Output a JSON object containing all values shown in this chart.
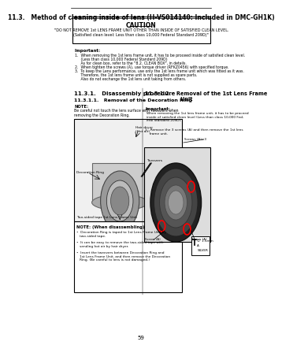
{
  "page_number": "59",
  "bg_color": "#ffffff",
  "title": "11.3.   Method of cleaning inside of lens (H-VS014140: Included in DMC-GH1K)",
  "caution_title": "CAUTION",
  "caution_line1": "\"DO NOT REMOVE 1st LENS FRAME UNIT OTHER THAN INSIDE OF SATISFIED CLEAN LEVEL.",
  "caution_line2": "(Satisfied clean level: Less than class 10,000 Federal Standard 209D)\"",
  "important_label": "Important:",
  "important_items": [
    "1.  When removing the 1st lens frame unit, it has to be proceed inside of satisfied clean level.",
    "     (Less than class 10,000 Federal Standard 209D)",
    "     As for clean box, refer to the \"8.2. CLEAN BOX\", in details.",
    "2.  When tighten the screws (A), use torque driver (RFKZ0456) with specified torque.",
    "3.  To keep the Lens performance, use only the 1st lens frame unit which was fitted as it was.",
    "     Therefore, the 1st lens frame unit is not supplied as spare parts.",
    "     Also do not exchange the 1st lens unit taking from others."
  ],
  "section_left_title": "11.3.1.   Disassembly procedure",
  "subsection_left_title": "11.3.1.1.   Removal of the Decoration Ring",
  "note_label": "NOTE:",
  "note_text": "Be careful not touch the lens surface with Tweezers when\nremoving the Decoration Ring.",
  "left_img_labels": [
    "Hair dryer\n(Hot air)",
    "Decoration Ring",
    "Tweezers",
    "Two-sided tape",
    "1st Lens Frame Unit"
  ],
  "note_disassembly_title": "NOTE: (When disassembling)",
  "note_disassembly_items": [
    "•  Decoration Ring is taped to 1st Lens Frame Unit by\n   two-sided tape.",
    "•  It can be easy to remove the two-sided tape with\n   sending hot air by hair dryer.",
    "•  Insert the tweezers between Decoration Ring and\n   1st Lens Frame Unit, and then remove the Decoration\n   Ring. (Be careful to lens is not damaged.)"
  ],
  "section_right_title": "11.3.1.2.   Removal of the 1st Lens Frame\n                    Unit",
  "important_right_label": "Important:",
  "important_right_text": "When removing the 1st lens frame unit, it has to be proceed\ninside of satisfied clean level (Less than class 10,000 Fed-\neral Standard 209D).",
  "step1_text": "1.  Remove the 3 screws (A) and then remove the 1st lens\n    frame unit.",
  "right_img_label_top": "Screws (A)×3",
  "right_img_label_bl": "Screw (A)",
  "right_img_label_br": "Screw (A)",
  "screw_spec_line1": "∅  1.5mm",
  "screw_spec_line2": "A",
  "screw_spec_line3": "SILVER"
}
